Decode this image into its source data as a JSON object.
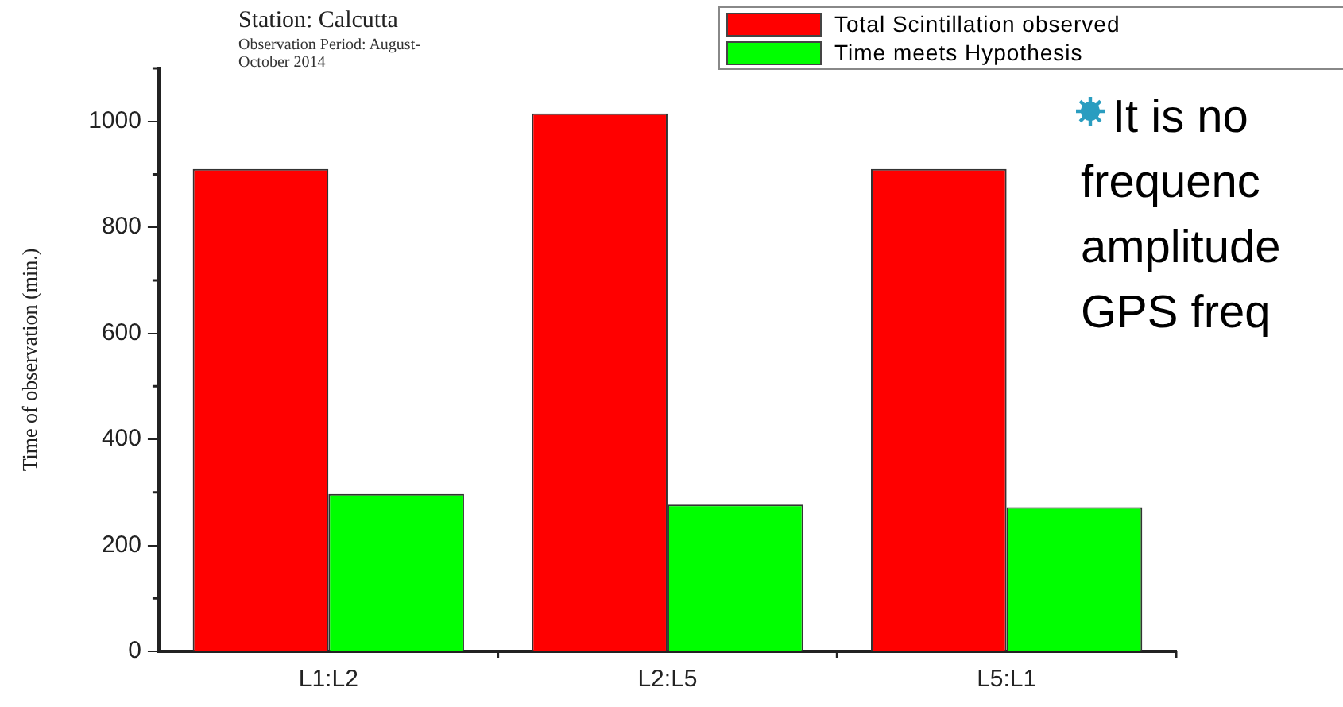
{
  "chart_data": {
    "type": "bar",
    "title": "Station: Calcutta",
    "subtitle": "Observation Period: August-October 2014",
    "ylabel": "Time of observation (min.)",
    "categories": [
      "L1:L2",
      "L2:L5",
      "L5:L1"
    ],
    "series": [
      {
        "name": "Total Scintillation observed",
        "color": "#ff0000",
        "values": [
          910,
          1015,
          910
        ]
      },
      {
        "name": "Time meets Hypothesis",
        "color": "#00ff00",
        "values": [
          297,
          277,
          272
        ]
      }
    ],
    "ylim": [
      0,
      1100
    ],
    "yticks": [
      0,
      200,
      400,
      600,
      800,
      1000
    ],
    "grid": false,
    "legend": "top right",
    "annotations": [
      "It is no",
      "frequenc",
      "amplitude",
      "GPS freq"
    ]
  }
}
